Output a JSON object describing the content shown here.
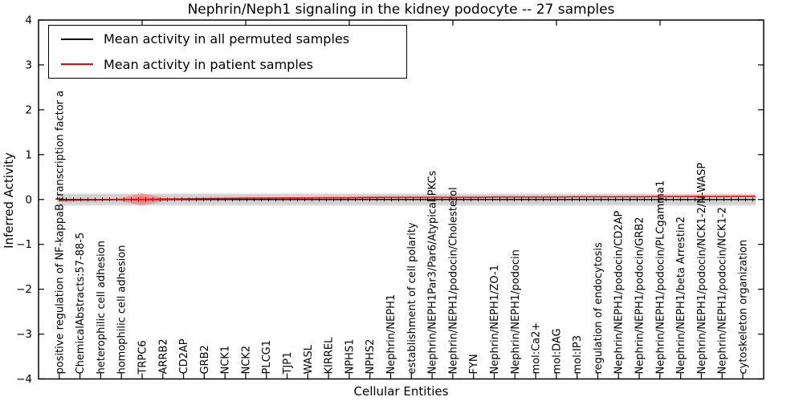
{
  "title": "Nephrin/Neph1 signaling in the kidney podocyte -- 27 samples",
  "axes": {
    "xlabel": "Cellular Entities",
    "ylabel": "Inferred Activity",
    "yticks": [
      "4",
      "3",
      "2",
      "1",
      "0",
      "−1",
      "−2",
      "−3",
      "−4"
    ]
  },
  "legend": {
    "items": [
      {
        "label": "Mean activity in all permuted samples",
        "color": "#000000"
      },
      {
        "label": "Mean activity in patient samples",
        "color": "#ff0000"
      }
    ]
  },
  "chart_data": {
    "type": "line",
    "title": "Nephrin/Neph1 signaling in the kidney podocyte -- 27 samples",
    "xlabel": "Cellular Entities",
    "ylabel": "Inferred Activity",
    "ylim": [
      -4,
      4
    ],
    "grid": false,
    "legend_position": "upper left",
    "categories": [
      "positive regulation of NF-kappaB transcription factor a",
      "ChemicalAbstracts:57-88-5",
      "heterophilic cell adhesion",
      "homophilic cell adhesion",
      "TRPC6",
      "ARRB2",
      "CD2AP",
      "GRB2",
      "NCK1",
      "NCK2",
      "PLCG1",
      "TJP1",
      "WASL",
      "KIRREL",
      "NPHS1",
      "NPHS2",
      "Nephrin/NEPH1",
      "establishment of cell polarity",
      "Nephrin/NEPH1Par3/Par6/Atypical PKCs",
      "Nephrin/NEPH1/podocin/Cholesterol",
      "FYN",
      "Nephrin/NEPH1/ZO-1",
      "Nephrin/NEPH1/podocin",
      "mol:Ca2+",
      "mol:DAG",
      "mol:IP3",
      "regulation of endocytosis",
      "Nephrin/NEPH1/podocin/CD2AP",
      "Nephrin/NEPH1/podocin/GRB2",
      "Nephrin/NEPH1/podocin/PLCgamma1",
      "Nephrin/NEPH1/beta Arrestin2",
      "Nephrin/NEPH1/podocin/NCK1-2/N-WASP",
      "Nephrin/NEPH1/podocin/NCK1-2",
      "cytoskeleton organization"
    ],
    "series": [
      {
        "name": "Mean activity in all permuted samples",
        "color": "#000000",
        "values": [
          0,
          0,
          0,
          0,
          0,
          0,
          0,
          0,
          0,
          0,
          0,
          0,
          0,
          0,
          0,
          0,
          0,
          0,
          0,
          0,
          0,
          0,
          0,
          0,
          0,
          0,
          0,
          0,
          0,
          0,
          0,
          0,
          0,
          0
        ]
      },
      {
        "name": "Mean activity in patient samples",
        "color": "#ff0000",
        "values": [
          -0.02,
          -0.015,
          -0.01,
          -0.005,
          0.0,
          0.01,
          0.015,
          0.02,
          0.025,
          0.03,
          0.03,
          0.035,
          0.035,
          0.04,
          0.04,
          0.045,
          0.05,
          0.05,
          0.05,
          0.05,
          0.05,
          0.055,
          0.055,
          0.055,
          0.055,
          0.06,
          0.06,
          0.06,
          0.06,
          0.065,
          0.065,
          0.07,
          0.065,
          0.07
        ]
      }
    ],
    "band": {
      "label": "permuted-samples-spread",
      "center": 0.0,
      "halfwidth": 0.12,
      "color": "#000000",
      "opacity": 0.12
    },
    "patient_spread": {
      "category": "TRPC6",
      "category_index": 4,
      "x_halfwidth": 1.35,
      "peak_halfheight": 0.14,
      "color": "#ff0000",
      "opacity": 0.25
    }
  }
}
